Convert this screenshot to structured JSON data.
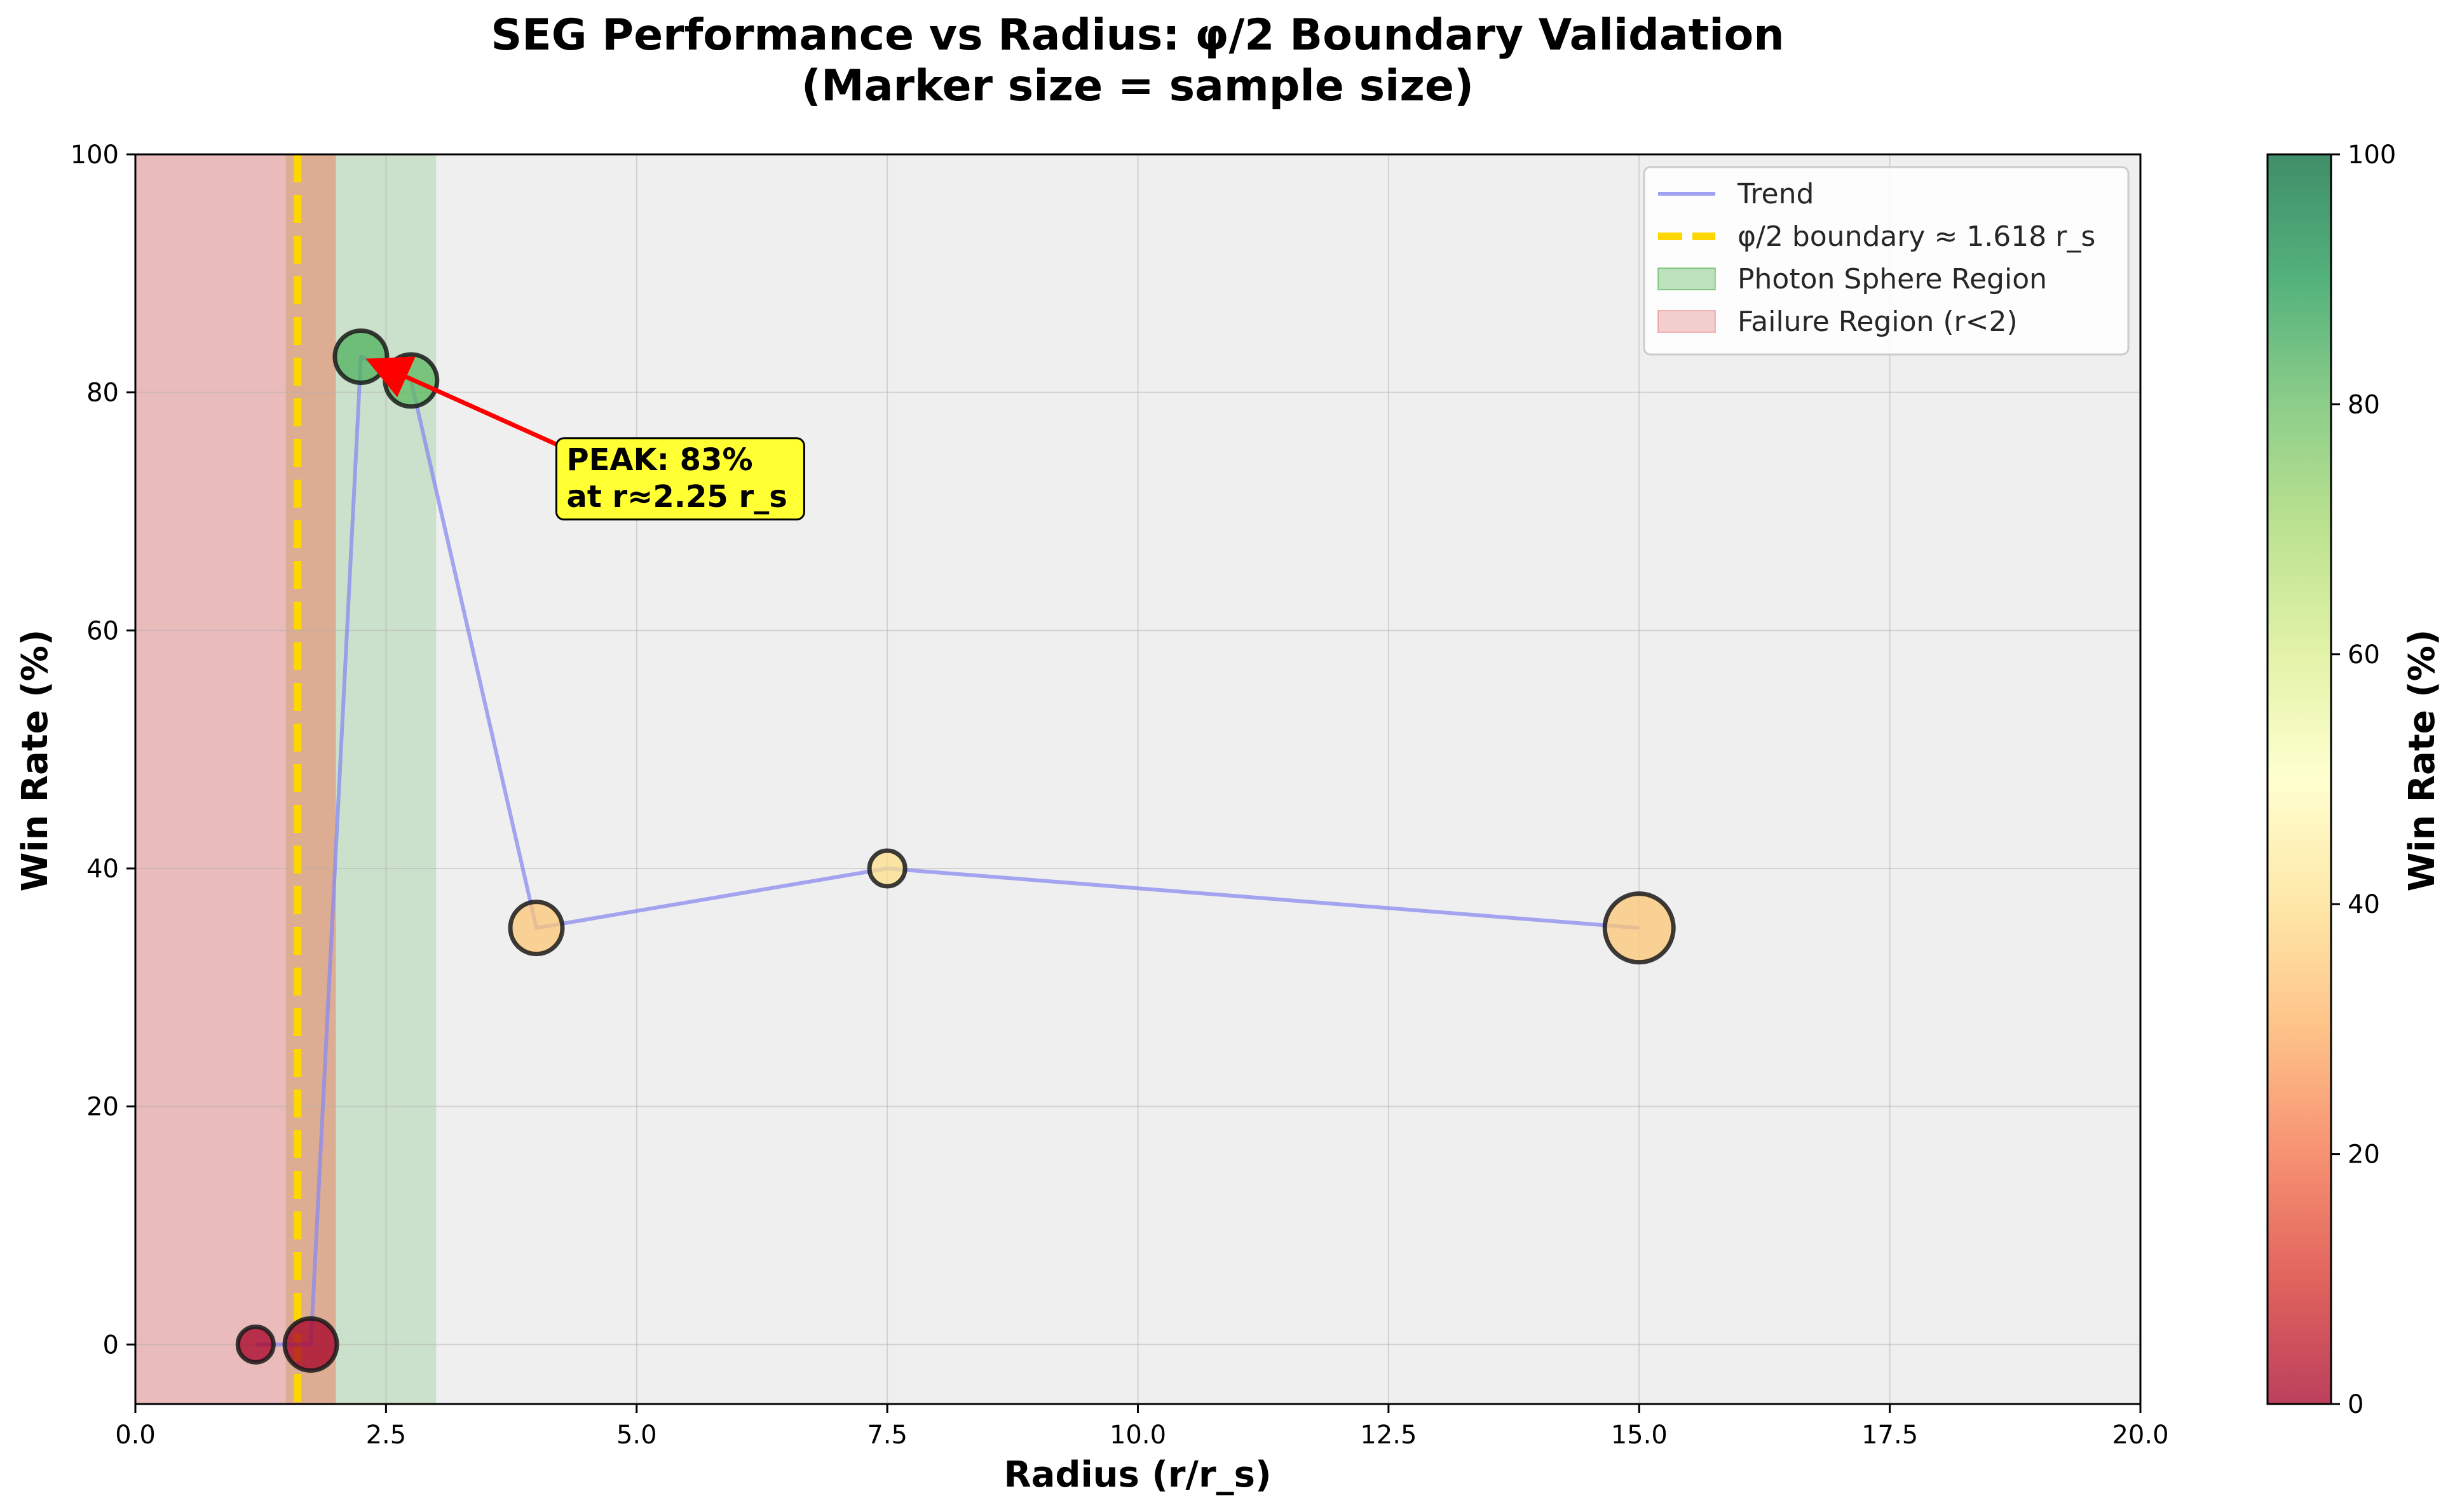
{
  "chart_data": {
    "type": "scatter",
    "title": "SEG Performance vs Radius: φ/2 Boundary Validation",
    "subtitle": "(Marker size = sample size)",
    "xlabel": "Radius (r/r_s)",
    "ylabel": "Win Rate (%)",
    "xlim": [
      0,
      20
    ],
    "ylim": [
      -5,
      100
    ],
    "x_ticks": [
      0,
      2.5,
      5,
      7.5,
      10,
      12.5,
      15,
      17.5,
      20
    ],
    "x_tick_labels": [
      "0.0",
      "2.5",
      "5.0",
      "7.5",
      "10.0",
      "12.5",
      "15.0",
      "17.5",
      "20.0"
    ],
    "y_ticks": [
      0,
      20,
      40,
      60,
      80,
      100
    ],
    "y_tick_labels": [
      "0",
      "20",
      "40",
      "60",
      "80",
      "100"
    ],
    "grid": true,
    "legend_position": "top-right",
    "points": [
      {
        "x": 1.2,
        "y": 0,
        "size": 1
      },
      {
        "x": 1.75,
        "y": 0,
        "size": 2
      },
      {
        "x": 2.25,
        "y": 83,
        "size": 2
      },
      {
        "x": 2.75,
        "y": 81,
        "size": 2
      },
      {
        "x": 4.0,
        "y": 35,
        "size": 2
      },
      {
        "x": 7.5,
        "y": 40,
        "size": 1
      },
      {
        "x": 15.0,
        "y": 35,
        "size": 3
      }
    ],
    "series": [
      {
        "name": "Trend",
        "type": "line",
        "color": "#8a8af0"
      },
      {
        "name": "φ/2 boundary ≈ 1.618 r_s",
        "type": "vline",
        "x": 1.618,
        "color": "#ffd700"
      },
      {
        "name": "Photon Sphere Region",
        "type": "vspan",
        "range": [
          2.0,
          3.0
        ],
        "color": "#2ca02c"
      },
      {
        "name": "Failure Region (r<2)",
        "type": "vspan",
        "range": [
          0,
          2.0
        ],
        "color": "#e06666"
      }
    ],
    "highlight_band": {
      "range": [
        1.5,
        2.0
      ],
      "color": "#d4a373"
    },
    "annotation": {
      "lines": [
        "PEAK: 83%",
        "at r≈2.25 r_s"
      ],
      "target": {
        "x": 2.25,
        "y": 83
      },
      "text_at": {
        "x": 4.25,
        "y": 73
      }
    },
    "colorbar": {
      "label": "Win Rate (%)",
      "range": [
        0,
        100
      ],
      "ticks": [
        0,
        20,
        40,
        60,
        80,
        100
      ],
      "tick_labels": [
        "0",
        "20",
        "40",
        "60",
        "80",
        "100"
      ],
      "colormap": "RdYlGn"
    }
  }
}
